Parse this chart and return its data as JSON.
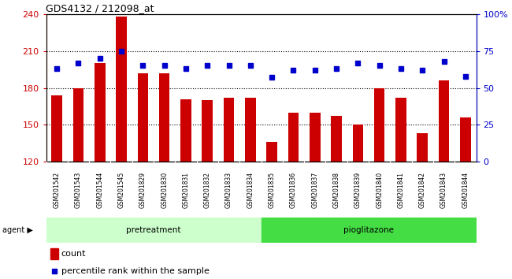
{
  "title": "GDS4132 / 212098_at",
  "samples": [
    "GSM201542",
    "GSM201543",
    "GSM201544",
    "GSM201545",
    "GSM201829",
    "GSM201830",
    "GSM201831",
    "GSM201832",
    "GSM201833",
    "GSM201834",
    "GSM201835",
    "GSM201836",
    "GSM201837",
    "GSM201838",
    "GSM201839",
    "GSM201840",
    "GSM201841",
    "GSM201842",
    "GSM201843",
    "GSM201844"
  ],
  "counts": [
    174,
    180,
    200,
    238,
    192,
    192,
    171,
    170,
    172,
    172,
    136,
    160,
    160,
    157,
    150,
    180,
    172,
    143,
    186,
    156
  ],
  "percentile_ranks": [
    63,
    67,
    70,
    75,
    65,
    65,
    63,
    65,
    65,
    65,
    57,
    62,
    62,
    63,
    67,
    65,
    63,
    62,
    68,
    58
  ],
  "pretreatment_count": 10,
  "pioglitazone_count": 10,
  "bar_color": "#cc0000",
  "dot_color": "#0000cc",
  "ylim_left": [
    120,
    240
  ],
  "ylim_right": [
    0,
    100
  ],
  "yticks_left": [
    120,
    150,
    180,
    210,
    240
  ],
  "yticks_right": [
    0,
    25,
    50,
    75,
    100
  ],
  "ytick_labels_right": [
    "0",
    "25",
    "50",
    "75",
    "100%"
  ],
  "pretreatment_color": "#ccffcc",
  "pioglitazone_color": "#44dd44",
  "bar_width": 0.5
}
